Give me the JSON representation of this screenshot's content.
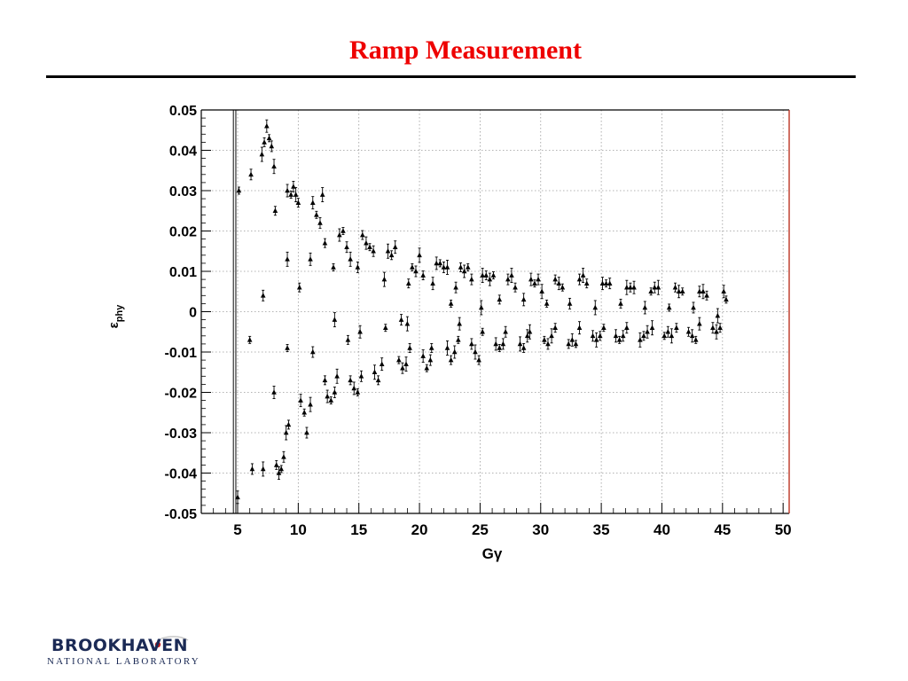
{
  "slide": {
    "title": "Ramp Measurement",
    "accent_color": "#ee0000"
  },
  "logo": {
    "name": "BROOKHAVEN",
    "subtitle": "NATIONAL LABORATORY"
  },
  "chart_data": {
    "type": "scatter",
    "title": "",
    "xlabel": "Gγ",
    "ylabel": "ε",
    "ylabel_subscript": "phy",
    "xlim": [
      2,
      50.5
    ],
    "ylim": [
      -0.05,
      0.05
    ],
    "xticks": [
      5,
      10,
      15,
      20,
      25,
      30,
      35,
      40,
      45,
      50
    ],
    "xtick_labels": [
      "5",
      "10",
      "15",
      "20",
      "25",
      "30",
      "35",
      "40",
      "45",
      "50"
    ],
    "yticks": [
      0.05,
      0.04,
      0.03,
      0.02,
      0.01,
      0,
      -0.01,
      -0.02,
      -0.03,
      -0.04,
      -0.05
    ],
    "ytick_labels": [
      "0.05",
      "0.04",
      "0.03",
      "0.02",
      "0.01",
      "0",
      "-0.01",
      "-0.02",
      "-0.03",
      "-0.04",
      "-0.05"
    ],
    "grid": true,
    "marker": "triangle",
    "error_bars": true,
    "frame_right_color": "#bb3322",
    "vertical_lines_x": [
      4.65,
      4.85
    ],
    "series": [
      {
        "points": [
          [
            5.1,
            0.03
          ],
          [
            6.1,
            0.034
          ],
          [
            7.0,
            0.039
          ],
          [
            7.2,
            0.042
          ],
          [
            7.4,
            0.046
          ],
          [
            7.6,
            0.043
          ],
          [
            7.8,
            0.041
          ],
          [
            8.0,
            0.036
          ],
          [
            8.1,
            0.025
          ],
          [
            9.1,
            0.03
          ],
          [
            9.4,
            0.029
          ],
          [
            9.6,
            0.031
          ],
          [
            9.8,
            0.029
          ],
          [
            10.0,
            0.027
          ],
          [
            11.2,
            0.027
          ],
          [
            11.5,
            0.024
          ],
          [
            11.8,
            0.022
          ],
          [
            12.0,
            0.029
          ],
          [
            12.2,
            0.017
          ],
          [
            13.4,
            0.019
          ],
          [
            13.7,
            0.02
          ],
          [
            14.0,
            0.016
          ],
          [
            14.3,
            0.013
          ],
          [
            15.3,
            0.019
          ],
          [
            15.6,
            0.017
          ],
          [
            15.9,
            0.016
          ],
          [
            16.2,
            0.015
          ],
          [
            17.4,
            0.015
          ],
          [
            17.7,
            0.014
          ],
          [
            18.0,
            0.016
          ],
          [
            19.4,
            0.011
          ],
          [
            19.7,
            0.01
          ],
          [
            20.0,
            0.014
          ],
          [
            20.3,
            0.009
          ],
          [
            21.4,
            0.012
          ],
          [
            21.7,
            0.012
          ],
          [
            22.0,
            0.011
          ],
          [
            22.3,
            0.011
          ],
          [
            23.4,
            0.011
          ],
          [
            23.7,
            0.01
          ],
          [
            24.0,
            0.011
          ],
          [
            24.3,
            0.008
          ],
          [
            25.2,
            0.009
          ],
          [
            25.5,
            0.009
          ],
          [
            25.8,
            0.008
          ],
          [
            26.1,
            0.009
          ],
          [
            27.3,
            0.008
          ],
          [
            27.6,
            0.009
          ],
          [
            27.9,
            0.006
          ],
          [
            29.2,
            0.008
          ],
          [
            29.5,
            0.007
          ],
          [
            29.8,
            0.008
          ],
          [
            30.1,
            0.005
          ],
          [
            31.2,
            0.008
          ],
          [
            31.5,
            0.007
          ],
          [
            31.8,
            0.006
          ],
          [
            33.2,
            0.008
          ],
          [
            33.5,
            0.009
          ],
          [
            33.8,
            0.007
          ],
          [
            35.1,
            0.007
          ],
          [
            35.4,
            0.007
          ],
          [
            35.7,
            0.007
          ],
          [
            37.1,
            0.006
          ],
          [
            37.4,
            0.006
          ],
          [
            37.7,
            0.006
          ],
          [
            39.1,
            0.005
          ],
          [
            39.4,
            0.006
          ],
          [
            39.7,
            0.006
          ],
          [
            41.1,
            0.006
          ],
          [
            41.4,
            0.005
          ],
          [
            41.7,
            0.005
          ],
          [
            43.1,
            0.005
          ],
          [
            43.4,
            0.005
          ],
          [
            43.7,
            0.004
          ],
          [
            45.1,
            0.005
          ],
          [
            45.3,
            0.003
          ],
          [
            7.1,
            0.004
          ],
          [
            9.1,
            0.013
          ],
          [
            10.1,
            0.006
          ],
          [
            11.0,
            0.013
          ],
          [
            12.9,
            0.011
          ],
          [
            14.9,
            0.011
          ],
          [
            17.1,
            0.008
          ],
          [
            19.1,
            0.007
          ],
          [
            21.1,
            0.007
          ],
          [
            22.6,
            0.002
          ],
          [
            23.0,
            0.006
          ],
          [
            25.1,
            0.001
          ],
          [
            26.6,
            0.003
          ],
          [
            28.6,
            0.003
          ],
          [
            30.5,
            0.002
          ],
          [
            32.4,
            0.002
          ],
          [
            34.5,
            0.001
          ],
          [
            36.6,
            0.002
          ],
          [
            38.6,
            0.001
          ],
          [
            40.6,
            0.001
          ],
          [
            42.6,
            0.001
          ],
          [
            44.6,
            -0.001
          ]
        ]
      },
      {
        "points": [
          [
            5.0,
            -0.046
          ],
          [
            6.0,
            -0.007
          ],
          [
            6.2,
            -0.039
          ],
          [
            7.1,
            -0.039
          ],
          [
            8.2,
            -0.038
          ],
          [
            8.4,
            -0.04
          ],
          [
            8.6,
            -0.039
          ],
          [
            8.8,
            -0.036
          ],
          [
            9.0,
            -0.03
          ],
          [
            9.2,
            -0.028
          ],
          [
            10.2,
            -0.022
          ],
          [
            10.5,
            -0.025
          ],
          [
            10.7,
            -0.03
          ],
          [
            11.0,
            -0.023
          ],
          [
            12.2,
            -0.017
          ],
          [
            12.4,
            -0.021
          ],
          [
            12.7,
            -0.022
          ],
          [
            13.0,
            -0.02
          ],
          [
            13.2,
            -0.016
          ],
          [
            14.3,
            -0.017
          ],
          [
            14.6,
            -0.019
          ],
          [
            14.9,
            -0.02
          ],
          [
            15.2,
            -0.016
          ],
          [
            16.3,
            -0.015
          ],
          [
            16.6,
            -0.017
          ],
          [
            16.9,
            -0.013
          ],
          [
            18.3,
            -0.012
          ],
          [
            18.6,
            -0.014
          ],
          [
            18.9,
            -0.013
          ],
          [
            19.2,
            -0.009
          ],
          [
            20.3,
            -0.011
          ],
          [
            20.6,
            -0.014
          ],
          [
            20.9,
            -0.012
          ],
          [
            22.3,
            -0.009
          ],
          [
            22.6,
            -0.012
          ],
          [
            22.9,
            -0.01
          ],
          [
            23.2,
            -0.007
          ],
          [
            24.3,
            -0.008
          ],
          [
            24.6,
            -0.01
          ],
          [
            24.9,
            -0.012
          ],
          [
            26.3,
            -0.008
          ],
          [
            26.6,
            -0.009
          ],
          [
            26.9,
            -0.008
          ],
          [
            28.3,
            -0.008
          ],
          [
            28.6,
            -0.009
          ],
          [
            28.9,
            -0.006
          ],
          [
            30.3,
            -0.007
          ],
          [
            30.6,
            -0.008
          ],
          [
            30.9,
            -0.006
          ],
          [
            32.3,
            -0.008
          ],
          [
            32.6,
            -0.007
          ],
          [
            32.9,
            -0.008
          ],
          [
            34.3,
            -0.006
          ],
          [
            34.6,
            -0.007
          ],
          [
            34.9,
            -0.006
          ],
          [
            36.2,
            -0.006
          ],
          [
            36.5,
            -0.007
          ],
          [
            36.8,
            -0.006
          ],
          [
            38.2,
            -0.007
          ],
          [
            38.5,
            -0.006
          ],
          [
            38.8,
            -0.005
          ],
          [
            40.2,
            -0.006
          ],
          [
            40.5,
            -0.005
          ],
          [
            40.8,
            -0.006
          ],
          [
            42.2,
            -0.005
          ],
          [
            42.5,
            -0.006
          ],
          [
            42.8,
            -0.007
          ],
          [
            44.2,
            -0.004
          ],
          [
            44.5,
            -0.005
          ],
          [
            44.8,
            -0.004
          ],
          [
            8.0,
            -0.02
          ],
          [
            9.1,
            -0.009
          ],
          [
            11.2,
            -0.01
          ],
          [
            13.0,
            -0.002
          ],
          [
            14.1,
            -0.007
          ],
          [
            15.1,
            -0.005
          ],
          [
            17.2,
            -0.004
          ],
          [
            18.5,
            -0.002
          ],
          [
            19.0,
            -0.003
          ],
          [
            21.0,
            -0.009
          ],
          [
            23.3,
            -0.003
          ],
          [
            25.2,
            -0.005
          ],
          [
            27.1,
            -0.005
          ],
          [
            29.1,
            -0.005
          ],
          [
            31.2,
            -0.004
          ],
          [
            33.2,
            -0.004
          ],
          [
            35.2,
            -0.004
          ],
          [
            37.1,
            -0.004
          ],
          [
            39.2,
            -0.004
          ],
          [
            41.2,
            -0.004
          ],
          [
            43.1,
            -0.003
          ]
        ]
      }
    ]
  }
}
